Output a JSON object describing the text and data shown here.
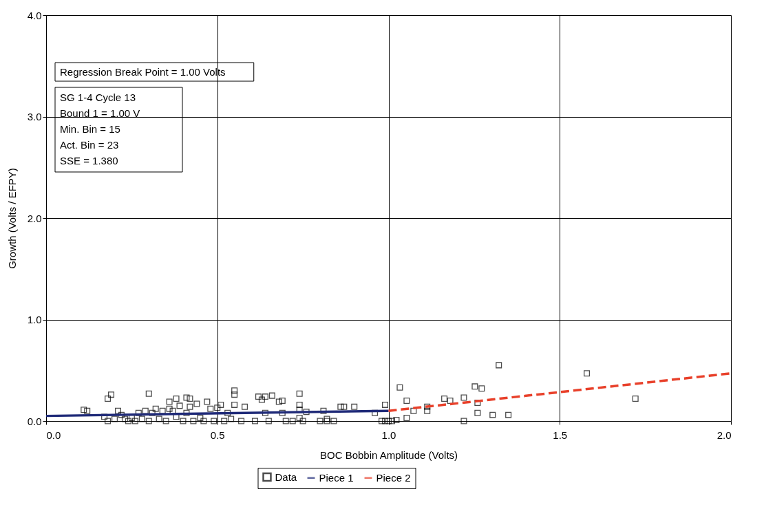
{
  "chart_data": {
    "type": "scatter",
    "xlabel": "BOC Bobbin Amplitude (Volts)",
    "ylabel": "Growth (Volts / EFPY)",
    "xlim": [
      0,
      2
    ],
    "ylim": [
      0,
      4
    ],
    "xticks": [
      {
        "value": 0,
        "label": "0.0"
      },
      {
        "value": 0.5,
        "label": "0.5"
      },
      {
        "value": 1,
        "label": "1.0"
      },
      {
        "value": 1.5,
        "label": "1.5"
      },
      {
        "value": 2,
        "label": "2.0"
      }
    ],
    "yticks": [
      {
        "value": 0,
        "label": "0.0"
      },
      {
        "value": 1,
        "label": "1.0"
      },
      {
        "value": 2,
        "label": "2.0"
      },
      {
        "value": 3,
        "label": "3.0"
      },
      {
        "value": 4,
        "label": "4.0"
      }
    ],
    "grid": true,
    "legend": "bottom",
    "annotations": [
      "Regression Break Point = 1.00 Volts",
      "SG 1-4 Cycle 13",
      "Bound 1 = 1.00 V",
      "Min. Bin = 15",
      "Act. Bin = 23",
      "SSE = 1.380"
    ],
    "series": [
      {
        "name": "Data",
        "type": "scatter",
        "marker": "square",
        "color": "#000000",
        "x": [
          0.11,
          0.12,
          0.17,
          0.18,
          0.19,
          0.18,
          0.2,
          0.21,
          0.22,
          0.23,
          0.24,
          0.25,
          0.26,
          0.27,
          0.28,
          0.29,
          0.3,
          0.3,
          0.31,
          0.32,
          0.33,
          0.34,
          0.35,
          0.36,
          0.36,
          0.37,
          0.38,
          0.38,
          0.39,
          0.4,
          0.41,
          0.41,
          0.42,
          0.42,
          0.43,
          0.44,
          0.45,
          0.46,
          0.47,
          0.48,
          0.49,
          0.5,
          0.51,
          0.52,
          0.53,
          0.54,
          0.55,
          0.55,
          0.55,
          0.57,
          0.58,
          0.61,
          0.62,
          0.63,
          0.64,
          0.64,
          0.65,
          0.66,
          0.68,
          0.69,
          0.69,
          0.7,
          0.72,
          0.74,
          0.74,
          0.74,
          0.74,
          0.75,
          0.76,
          0.8,
          0.81,
          0.82,
          0.82,
          0.84,
          0.86,
          0.87,
          0.9,
          0.96,
          0.98,
          0.99,
          0.99,
          1.0,
          1.01,
          1.023,
          1.033,
          1.053,
          1.053,
          1.073,
          1.113,
          1.113,
          1.163,
          1.18,
          1.22,
          1.22,
          1.252,
          1.272,
          1.26,
          1.26,
          1.304,
          1.322,
          1.35,
          1.579,
          1.721
        ],
        "values": [
          0.11,
          0.1,
          0.04,
          0.22,
          0.26,
          0.0,
          0.02,
          0.1,
          0.06,
          0.02,
          0.0,
          0.03,
          0.0,
          0.08,
          0.02,
          0.1,
          0.27,
          0.0,
          0.08,
          0.12,
          0.02,
          0.1,
          0.0,
          0.12,
          0.19,
          0.1,
          0.04,
          0.22,
          0.15,
          0.0,
          0.23,
          0.08,
          0.22,
          0.14,
          0.0,
          0.17,
          0.03,
          0.0,
          0.19,
          0.12,
          0.0,
          0.13,
          0.16,
          0.0,
          0.08,
          0.02,
          0.3,
          0.26,
          0.16,
          0.0,
          0.14,
          0.0,
          0.24,
          0.21,
          0.24,
          0.08,
          0.0,
          0.25,
          0.19,
          0.2,
          0.08,
          0.0,
          0.0,
          0.27,
          0.16,
          0.11,
          0.03,
          0.0,
          0.09,
          0.0,
          0.1,
          0.02,
          0.0,
          0.0,
          0.14,
          0.14,
          0.14,
          0.08,
          0.0,
          0.0,
          0.16,
          0.0,
          0.0,
          0.01,
          0.33,
          0.2,
          0.03,
          0.1,
          0.14,
          0.1,
          0.22,
          0.2,
          0.23,
          0.0,
          0.34,
          0.32,
          0.18,
          0.08,
          0.06,
          0.55,
          0.06,
          0.47,
          0.22
        ]
      },
      {
        "name": "Piece 1",
        "type": "line",
        "line_style": "solid",
        "color": "#1f2a78",
        "x": [
          0,
          1
        ],
        "values": [
          0.05,
          0.1
        ]
      },
      {
        "name": "Piece 2",
        "type": "line",
        "line_style": "dashed",
        "color": "#e8402a",
        "x": [
          1,
          2
        ],
        "values": [
          0.1,
          0.47
        ]
      }
    ]
  }
}
